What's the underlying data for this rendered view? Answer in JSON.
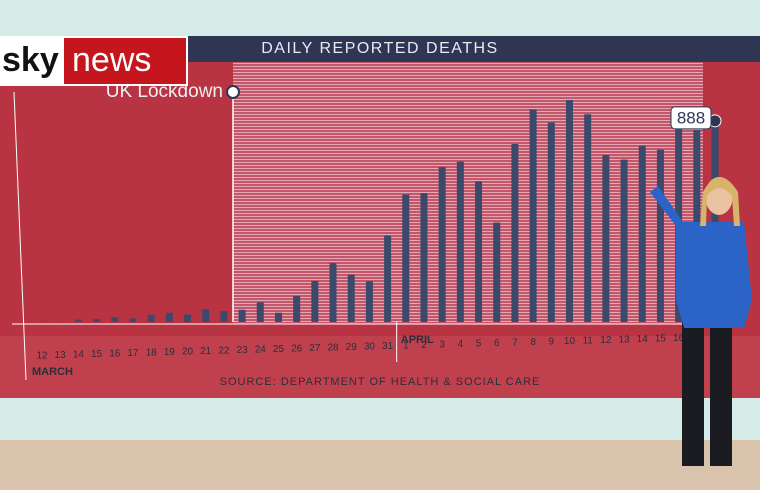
{
  "logo": {
    "left": "sky",
    "right": "news"
  },
  "chart_data": {
    "type": "bar",
    "title": "DAILY REPORTED DEATHS",
    "source": "SOURCE: DEPARTMENT OF HEALTH & SOCIAL CARE",
    "categories": [
      "12",
      "13",
      "14",
      "15",
      "16",
      "17",
      "18",
      "19",
      "20",
      "21",
      "22",
      "23",
      "24",
      "25",
      "26",
      "27",
      "28",
      "29",
      "30",
      "31",
      "1",
      "2",
      "3",
      "4",
      "5",
      "6",
      "7",
      "8",
      "9",
      "10",
      "11",
      "12",
      "13",
      "14",
      "15",
      "16",
      null,
      null
    ],
    "values": [
      2,
      1,
      11,
      14,
      20,
      16,
      32,
      41,
      33,
      56,
      48,
      54,
      87,
      41,
      115,
      181,
      260,
      209,
      180,
      381,
      563,
      569,
      684,
      708,
      621,
      439,
      786,
      938,
      881,
      980,
      917,
      737,
      717,
      778,
      761,
      861,
      847,
      888
    ],
    "color": "#3b4a6b",
    "months": [
      "MARCH",
      "APRIL"
    ],
    "annotation": {
      "text": "UK Lockdown",
      "category": "23"
    }
  }
}
